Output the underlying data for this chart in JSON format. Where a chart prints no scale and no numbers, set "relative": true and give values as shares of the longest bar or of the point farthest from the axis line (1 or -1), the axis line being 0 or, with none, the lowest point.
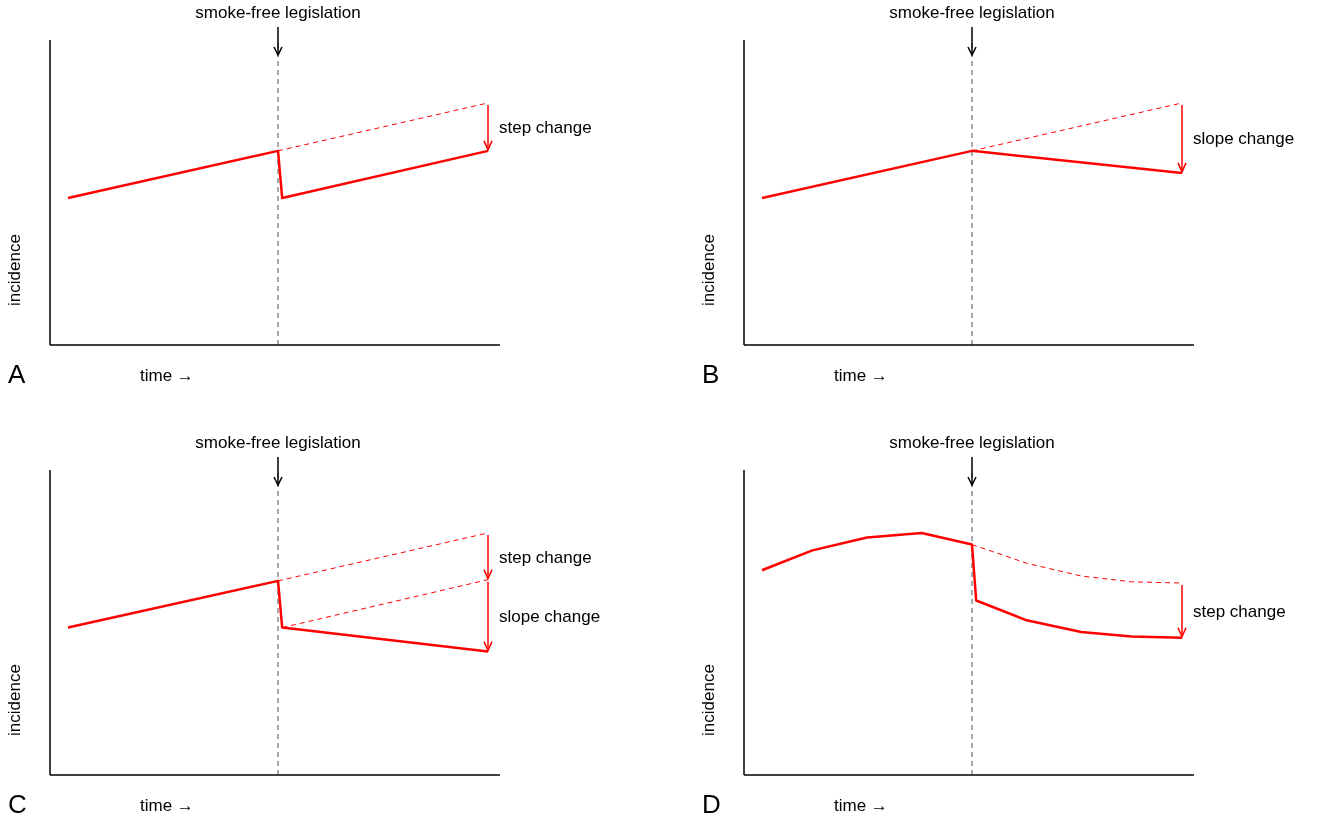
{
  "chart_data": [
    {
      "type": "line",
      "relative": true,
      "categories": [
        null,
        null,
        null,
        null,
        null,
        null,
        null,
        null,
        null,
        null,
        null,
        null,
        null,
        null,
        null,
        null,
        null,
        null,
        null,
        null,
        null,
        null,
        null,
        null,
        null,
        null,
        null,
        null,
        null,
        null,
        null,
        null,
        null,
        null,
        null,
        null,
        null,
        null,
        null,
        null,
        null,
        null,
        null,
        null,
        null,
        null,
        null,
        null,
        null,
        null,
        null,
        null,
        null,
        null,
        null,
        null,
        null,
        null,
        null,
        null,
        null,
        null,
        null,
        null,
        null,
        null,
        null,
        null,
        null,
        null,
        null,
        null,
        null,
        null,
        null,
        null,
        null,
        null,
        null,
        null,
        null,
        null,
        null,
        null,
        null,
        null,
        null,
        null,
        null,
        null,
        null,
        null,
        null,
        null,
        null,
        null,
        null,
        null,
        null,
        null,
        null
      ],
      "xlabel": "time →",
      "ylabel": "incidence",
      "annotations": [
        "A",
        "smoke-free legislation",
        "step change"
      ],
      "marker": "none",
      "series": [
        {
          "color": "#ff0000",
          "line_style": "solid",
          "values": [
            0.607,
            null,
            null,
            null,
            null,
            null,
            null,
            null,
            null,
            null,
            null,
            null,
            null,
            null,
            null,
            null,
            null,
            null,
            null,
            null,
            null,
            null,
            null,
            null,
            null,
            null,
            null,
            null,
            null,
            null,
            null,
            null,
            null,
            null,
            null,
            null,
            null,
            null,
            null,
            null,
            null,
            null,
            null,
            null,
            null,
            null,
            null,
            null,
            null,
            null,
            0.802,
            0.607,
            null,
            null,
            null,
            null,
            null,
            null,
            null,
            null,
            null,
            null,
            null,
            null,
            null,
            null,
            null,
            null,
            null,
            null,
            null,
            null,
            null,
            null,
            null,
            null,
            null,
            null,
            null,
            null,
            null,
            null,
            null,
            null,
            null,
            null,
            null,
            null,
            null,
            null,
            null,
            null,
            null,
            null,
            null,
            null,
            null,
            null,
            null,
            null,
            0.802
          ]
        },
        {
          "color": "#ff0000",
          "line_style": "dashed",
          "values": [
            null,
            null,
            null,
            null,
            null,
            null,
            null,
            null,
            null,
            null,
            null,
            null,
            null,
            null,
            null,
            null,
            null,
            null,
            null,
            null,
            null,
            null,
            null,
            null,
            null,
            null,
            null,
            null,
            null,
            null,
            null,
            null,
            null,
            null,
            null,
            null,
            null,
            null,
            null,
            null,
            null,
            null,
            null,
            null,
            null,
            null,
            null,
            null,
            null,
            null,
            0.802,
            null,
            null,
            null,
            null,
            null,
            null,
            null,
            null,
            null,
            null,
            null,
            null,
            null,
            null,
            null,
            null,
            null,
            null,
            null,
            null,
            null,
            null,
            null,
            null,
            null,
            null,
            null,
            null,
            null,
            null,
            null,
            null,
            null,
            null,
            null,
            null,
            null,
            null,
            null,
            null,
            null,
            null,
            null,
            null,
            null,
            null,
            null,
            null,
            null,
            1.0
          ]
        }
      ]
    },
    {
      "type": "line",
      "relative": true,
      "categories": [
        null,
        null,
        null,
        null,
        null,
        null,
        null,
        null,
        null,
        null,
        null,
        null,
        null,
        null,
        null,
        null,
        null,
        null,
        null,
        null,
        null,
        null,
        null,
        null,
        null,
        null,
        null,
        null,
        null,
        null,
        null,
        null,
        null,
        null,
        null,
        null,
        null,
        null,
        null,
        null,
        null,
        null,
        null,
        null,
        null,
        null,
        null,
        null,
        null,
        null,
        null,
        null,
        null,
        null,
        null,
        null,
        null,
        null,
        null,
        null,
        null,
        null,
        null,
        null,
        null,
        null,
        null,
        null,
        null,
        null,
        null,
        null,
        null,
        null,
        null,
        null,
        null,
        null,
        null,
        null,
        null,
        null,
        null,
        null,
        null,
        null,
        null,
        null,
        null,
        null,
        null,
        null,
        null,
        null,
        null,
        null,
        null,
        null,
        null,
        null,
        null
      ],
      "xlabel": "time →",
      "ylabel": "incidence",
      "annotations": [
        "B",
        "smoke-free legislation",
        "slope change"
      ],
      "marker": "none",
      "series": [
        {
          "color": "#ff0000",
          "line_style": "solid",
          "values": [
            0.607,
            null,
            null,
            null,
            null,
            null,
            null,
            null,
            null,
            null,
            null,
            null,
            null,
            null,
            null,
            null,
            null,
            null,
            null,
            null,
            null,
            null,
            null,
            null,
            null,
            null,
            null,
            null,
            null,
            null,
            null,
            null,
            null,
            null,
            null,
            null,
            null,
            null,
            null,
            null,
            null,
            null,
            null,
            null,
            null,
            null,
            null,
            null,
            null,
            null,
            0.802,
            null,
            null,
            null,
            null,
            null,
            null,
            null,
            null,
            null,
            null,
            null,
            null,
            null,
            null,
            null,
            null,
            null,
            null,
            null,
            null,
            null,
            null,
            null,
            null,
            null,
            null,
            null,
            null,
            null,
            null,
            null,
            null,
            null,
            null,
            null,
            null,
            null,
            null,
            null,
            null,
            null,
            null,
            null,
            null,
            null,
            null,
            null,
            null,
            null,
            0.711
          ]
        },
        {
          "color": "#ff0000",
          "line_style": "dashed",
          "values": [
            null,
            null,
            null,
            null,
            null,
            null,
            null,
            null,
            null,
            null,
            null,
            null,
            null,
            null,
            null,
            null,
            null,
            null,
            null,
            null,
            null,
            null,
            null,
            null,
            null,
            null,
            null,
            null,
            null,
            null,
            null,
            null,
            null,
            null,
            null,
            null,
            null,
            null,
            null,
            null,
            null,
            null,
            null,
            null,
            null,
            null,
            null,
            null,
            null,
            null,
            0.802,
            null,
            null,
            null,
            null,
            null,
            null,
            null,
            null,
            null,
            null,
            null,
            null,
            null,
            null,
            null,
            null,
            null,
            null,
            null,
            null,
            null,
            null,
            null,
            null,
            null,
            null,
            null,
            null,
            null,
            null,
            null,
            null,
            null,
            null,
            null,
            null,
            null,
            null,
            null,
            null,
            null,
            null,
            null,
            null,
            null,
            null,
            null,
            null,
            null,
            1.0
          ]
        }
      ]
    },
    {
      "type": "line",
      "relative": true,
      "categories": [
        null,
        null,
        null,
        null,
        null,
        null,
        null,
        null,
        null,
        null,
        null,
        null,
        null,
        null,
        null,
        null,
        null,
        null,
        null,
        null,
        null,
        null,
        null,
        null,
        null,
        null,
        null,
        null,
        null,
        null,
        null,
        null,
        null,
        null,
        null,
        null,
        null,
        null,
        null,
        null,
        null,
        null,
        null,
        null,
        null,
        null,
        null,
        null,
        null,
        null,
        null,
        null,
        null,
        null,
        null,
        null,
        null,
        null,
        null,
        null,
        null,
        null,
        null,
        null,
        null,
        null,
        null,
        null,
        null,
        null,
        null,
        null,
        null,
        null,
        null,
        null,
        null,
        null,
        null,
        null,
        null,
        null,
        null,
        null,
        null,
        null,
        null,
        null,
        null,
        null,
        null,
        null,
        null,
        null,
        null,
        null,
        null,
        null,
        null,
        null,
        null
      ],
      "xlabel": "time →",
      "ylabel": "incidence",
      "annotations": [
        "C",
        "smoke-free legislation",
        "step change",
        "slope change"
      ],
      "marker": "none",
      "series": [
        {
          "color": "#ff0000",
          "line_style": "solid",
          "values": [
            0.609,
            null,
            null,
            null,
            null,
            null,
            null,
            null,
            null,
            null,
            null,
            null,
            null,
            null,
            null,
            null,
            null,
            null,
            null,
            null,
            null,
            null,
            null,
            null,
            null,
            null,
            null,
            null,
            null,
            null,
            null,
            null,
            null,
            null,
            null,
            null,
            null,
            null,
            null,
            null,
            null,
            null,
            null,
            null,
            null,
            null,
            null,
            null,
            null,
            null,
            0.802,
            0.609,
            null,
            null,
            null,
            null,
            null,
            null,
            null,
            null,
            null,
            null,
            null,
            null,
            null,
            null,
            null,
            null,
            null,
            null,
            null,
            null,
            null,
            null,
            null,
            null,
            null,
            null,
            null,
            null,
            null,
            null,
            null,
            null,
            null,
            null,
            null,
            null,
            null,
            null,
            null,
            null,
            null,
            null,
            null,
            null,
            null,
            null,
            null,
            null,
            0.51
          ]
        },
        {
          "color": "#ff0000",
          "line_style": "dashed",
          "values": [
            null,
            null,
            null,
            null,
            null,
            null,
            null,
            null,
            null,
            null,
            null,
            null,
            null,
            null,
            null,
            null,
            null,
            null,
            null,
            null,
            null,
            null,
            null,
            null,
            null,
            null,
            null,
            null,
            null,
            null,
            null,
            null,
            null,
            null,
            null,
            null,
            null,
            null,
            null,
            null,
            null,
            null,
            null,
            null,
            null,
            null,
            null,
            null,
            null,
            null,
            0.802,
            null,
            null,
            null,
            null,
            null,
            null,
            null,
            null,
            null,
            null,
            null,
            null,
            null,
            null,
            null,
            null,
            null,
            null,
            null,
            null,
            null,
            null,
            null,
            null,
            null,
            null,
            null,
            null,
            null,
            null,
            null,
            null,
            null,
            null,
            null,
            null,
            null,
            null,
            null,
            null,
            null,
            null,
            null,
            null,
            null,
            null,
            null,
            null,
            null,
            1.0
          ]
        },
        {
          "color": "#ff0000",
          "line_style": "dashed",
          "values": [
            null,
            null,
            null,
            null,
            null,
            null,
            null,
            null,
            null,
            null,
            null,
            null,
            null,
            null,
            null,
            null,
            null,
            null,
            null,
            null,
            null,
            null,
            null,
            null,
            null,
            null,
            null,
            null,
            null,
            null,
            null,
            null,
            null,
            null,
            null,
            null,
            null,
            null,
            null,
            null,
            null,
            null,
            null,
            null,
            null,
            null,
            null,
            null,
            null,
            null,
            null,
            0.609,
            null,
            null,
            null,
            null,
            null,
            null,
            null,
            null,
            null,
            null,
            null,
            null,
            null,
            null,
            null,
            null,
            null,
            null,
            null,
            null,
            null,
            null,
            null,
            null,
            null,
            null,
            null,
            null,
            null,
            null,
            null,
            null,
            null,
            null,
            null,
            null,
            null,
            null,
            null,
            null,
            null,
            null,
            null,
            null,
            null,
            null,
            null,
            null,
            0.807
          ]
        }
      ]
    },
    {
      "type": "line",
      "relative": true,
      "categories": [
        null,
        null,
        null,
        null,
        null,
        null,
        null,
        null,
        null,
        null,
        null,
        null,
        null,
        null,
        null,
        null,
        null,
        null,
        null,
        null,
        null,
        null,
        null,
        null,
        null,
        null,
        null,
        null,
        null,
        null,
        null,
        null,
        null,
        null,
        null,
        null,
        null,
        null,
        null,
        null,
        null,
        null,
        null,
        null,
        null,
        null,
        null,
        null,
        null,
        null,
        null,
        null,
        null,
        null,
        null,
        null,
        null,
        null,
        null,
        null,
        null,
        null,
        null,
        null,
        null,
        null,
        null,
        null,
        null,
        null,
        null,
        null,
        null,
        null,
        null,
        null,
        null,
        null,
        null,
        null,
        null,
        null,
        null,
        null,
        null,
        null,
        null,
        null,
        null,
        null,
        null,
        null,
        null,
        null,
        null,
        null,
        null,
        null,
        null,
        null,
        null
      ],
      "xlabel": "time →",
      "ylabel": "incidence",
      "annotations": [
        "D",
        "smoke-free legislation",
        "step change"
      ],
      "marker": "none",
      "series": [
        {
          "color": "#ff0000",
          "line_style": "solid",
          "values": [
            0.846,
            null,
            null,
            null,
            null,
            null,
            null,
            null,
            null,
            null,
            null,
            null,
            0.928,
            null,
            null,
            null,
            null,
            null,
            null,
            null,
            null,
            null,
            null,
            null,
            null,
            0.981,
            null,
            null,
            null,
            null,
            null,
            null,
            null,
            null,
            null,
            null,
            null,
            null,
            1.0,
            null,
            null,
            null,
            null,
            null,
            null,
            null,
            null,
            null,
            null,
            null,
            0.952,
            0.721,
            null,
            null,
            null,
            null,
            null,
            null,
            null,
            null,
            null,
            null,
            null,
            0.639,
            null,
            null,
            null,
            null,
            null,
            null,
            null,
            null,
            null,
            null,
            null,
            null,
            0.591,
            null,
            null,
            null,
            null,
            null,
            null,
            null,
            null,
            null,
            null,
            null,
            0.572,
            null,
            null,
            null,
            null,
            null,
            null,
            null,
            null,
            null,
            null,
            null,
            0.567
          ]
        },
        {
          "color": "#ff0000",
          "line_style": "dashed",
          "values": [
            null,
            null,
            null,
            null,
            null,
            null,
            null,
            null,
            null,
            null,
            null,
            null,
            null,
            null,
            null,
            null,
            null,
            null,
            null,
            null,
            null,
            null,
            null,
            null,
            null,
            null,
            null,
            null,
            null,
            null,
            null,
            null,
            null,
            null,
            null,
            null,
            null,
            null,
            null,
            null,
            null,
            null,
            null,
            null,
            null,
            null,
            null,
            null,
            null,
            null,
            0.952,
            null,
            null,
            null,
            null,
            null,
            null,
            null,
            null,
            null,
            null,
            null,
            null,
            0.875,
            null,
            null,
            null,
            null,
            null,
            null,
            null,
            null,
            null,
            null,
            null,
            null,
            0.822,
            null,
            null,
            null,
            null,
            null,
            null,
            null,
            null,
            null,
            null,
            null,
            0.798,
            null,
            null,
            null,
            null,
            null,
            null,
            null,
            null,
            null,
            null,
            null,
            0.793
          ]
        }
      ]
    }
  ]
}
